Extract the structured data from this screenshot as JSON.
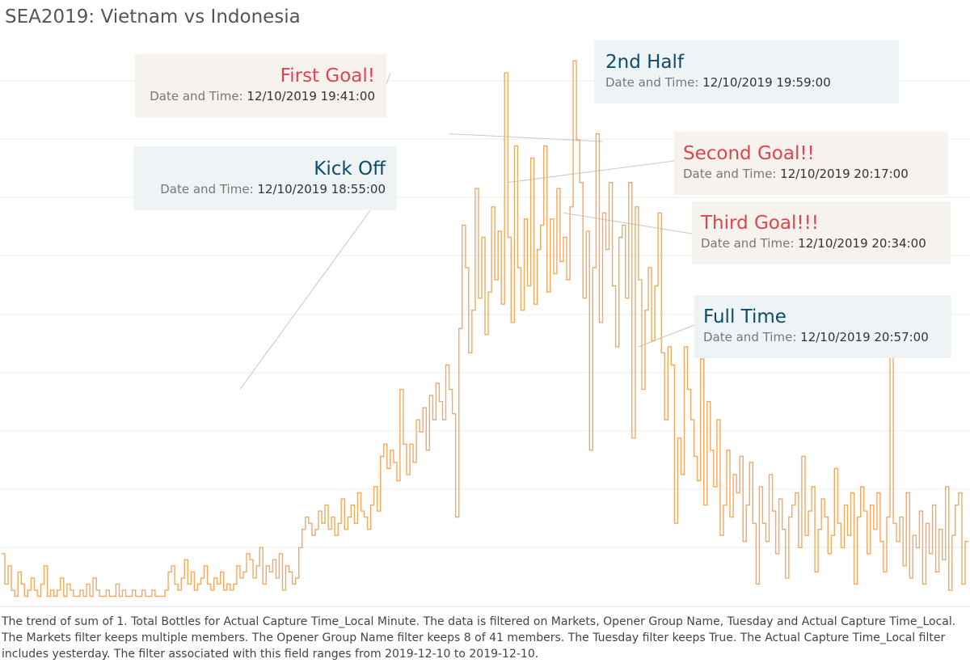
{
  "title": "SEA2019: Vietnam vs Indonesia",
  "colors": {
    "line": "#f5a860",
    "gridline": "#ececec",
    "goal_text": "#e0444d",
    "phase_text": "#0e4a6b",
    "goal_box": "#f6f2ee",
    "phase_box": "#eef4f6"
  },
  "annotations": [
    {
      "id": "first-goal",
      "title": "First Goal!",
      "label": "Date and Time:",
      "value": "12/10/2019 19:41:00",
      "kind": "goal"
    },
    {
      "id": "second-half",
      "title": "2nd Half",
      "label": "Date and Time:",
      "value": "12/10/2019 19:59:00",
      "kind": "phase"
    },
    {
      "id": "kick-off",
      "title": "Kick Off",
      "label": "Date and Time:",
      "value": "12/10/2019 18:55:00",
      "kind": "phase"
    },
    {
      "id": "second-goal",
      "title": "Second Goal!!",
      "label": "Date and Time:",
      "value": "12/10/2019 20:17:00",
      "kind": "goal"
    },
    {
      "id": "third-goal",
      "title": "Third Goal!!!",
      "label": "Date and Time:",
      "value": "12/10/2019 20:34:00",
      "kind": "goal"
    },
    {
      "id": "full-time",
      "title": "Full Time",
      "label": "Date and Time:",
      "value": "12/10/2019 20:57:00",
      "kind": "phase"
    }
  ],
  "caption": "The trend of sum of 1. Total Bottles for Actual Capture Time_Local Minute. The data is filtered on Markets, Opener Group Name, Tuesday and Actual Capture Time_Local. The Markets filter keeps multiple members. The Opener Group Name filter keeps 8 of 41 members. The Tuesday filter keeps True. The Actual Capture Time_Local filter includes yesterday. The filter associated with this field ranges from 2019-12-10 to 2019-12-10.",
  "chart_data": {
    "type": "line",
    "step": true,
    "x_unit": "minute",
    "y_measure": "Total Bottles",
    "x_start": "12/10/2019 17:42:00",
    "x_end": "12/10/2019 21:53:00",
    "grid": true,
    "legend": "none",
    "y_axis_shown": false,
    "ylim": [
      0,
      9.5
    ],
    "events": [
      {
        "x": "12/10/2019 18:55:00",
        "y": 3.5,
        "label": "Kick Off"
      },
      {
        "x": "12/10/2019 19:41:00",
        "y": 8.7,
        "label": "First Goal!"
      },
      {
        "x": "12/10/2019 19:59:00",
        "y": 7.7,
        "label": "2nd Half"
      },
      {
        "x": "12/10/2019 20:17:00",
        "y": 6.9,
        "label": "Second Goal!!"
      },
      {
        "x": "12/10/2019 20:34:00",
        "y": 6.4,
        "label": "Third Goal!!!"
      },
      {
        "x": "12/10/2019 20:57:00",
        "y": 4.2,
        "label": "Full Time"
      }
    ],
    "values": [
      0.8,
      0.3,
      0.6,
      0.2,
      0.1,
      0.5,
      0.3,
      0.1,
      0.2,
      0.4,
      0.2,
      0.1,
      0.3,
      0.6,
      0.1,
      0.2,
      0.1,
      0.2,
      0.4,
      0.1,
      0.3,
      0.2,
      0.1,
      0.1,
      0.2,
      0.1,
      0.3,
      0.1,
      0.4,
      0.2,
      0.1,
      0.1,
      0.2,
      0.1,
      0.1,
      0.3,
      0.1,
      0.2,
      0.1,
      0.1,
      0.2,
      0.1,
      0.1,
      0.2,
      0.1,
      0.1,
      0.2,
      0.1,
      0.1,
      0.1,
      0.2,
      0.5,
      0.6,
      0.3,
      0.2,
      0.4,
      0.7,
      0.3,
      0.5,
      0.2,
      0.3,
      0.4,
      0.6,
      0.3,
      0.2,
      0.4,
      0.3,
      0.5,
      0.2,
      0.3,
      0.2,
      0.3,
      0.6,
      0.4,
      0.5,
      0.8,
      0.7,
      0.4,
      0.6,
      0.9,
      0.3,
      0.6,
      0.5,
      0.7,
      0.4,
      0.8,
      0.2,
      0.6,
      0.5,
      0.3,
      0.4,
      0.9,
      1.2,
      1.4,
      1.3,
      1.1,
      1.2,
      1.5,
      1.3,
      1.6,
      1.2,
      1.4,
      1.1,
      1.3,
      1.7,
      1.2,
      1.4,
      1.6,
      1.3,
      1.8,
      1.5,
      1.4,
      1.2,
      1.6,
      1.9,
      1.5,
      2.4,
      2.6,
      2.2,
      2.5,
      2.3,
      2.0,
      3.5,
      2.6,
      2.1,
      2.6,
      2.3,
      3.0,
      2.8,
      3.2,
      2.5,
      3.4,
      3.0,
      3.6,
      3.3,
      3.0,
      3.9,
      3.5,
      3.1,
      1.4,
      4.5,
      6.2,
      5.5,
      4.1,
      4.8,
      6.8,
      5.0,
      6.0,
      4.4,
      5.1,
      6.5,
      5.3,
      6.1,
      4.9,
      8.7,
      6.0,
      4.6,
      7.5,
      5.5,
      4.8,
      6.3,
      5.2,
      7.3,
      4.9,
      5.8,
      6.2,
      7.5,
      5.1,
      6.3,
      5.4,
      6.8,
      5.6,
      6.0,
      5.3,
      6.5,
      8.9,
      7.6,
      6.9,
      5.0,
      6.1,
      2.5,
      5.5,
      7.7,
      4.6,
      6.4,
      5.8,
      6.9,
      5.2,
      4.2,
      6.0,
      6.2,
      5.0,
      6.9,
      2.7,
      6.5,
      5.3,
      3.5,
      4.8,
      5.5,
      4.3,
      5.2,
      6.4,
      4.1,
      3.0,
      4.2,
      3.9,
      1.3,
      2.7,
      2.1,
      4.2,
      3.5,
      3.0,
      2.4,
      2.0,
      4.0,
      1.6,
      3.3,
      2.5,
      1.9,
      3.0,
      1.1,
      1.6,
      2.5,
      1.4,
      2.1,
      1.8,
      2.4,
      1.0,
      1.6,
      2.3,
      1.3,
      0.3,
      1.9,
      1.3,
      1.0,
      2.1,
      1.5,
      0.8,
      1.7,
      1.2,
      0.4,
      1.4,
      1.6,
      1.8,
      0.9,
      2.4,
      1.1,
      1.5,
      1.9,
      0.5,
      1.2,
      1.7,
      1.4,
      0.8,
      1.1,
      2.2,
      1.3,
      0.9,
      1.6,
      1.1,
      1.8,
      0.3,
      1.4,
      1.9,
      1.5,
      0.8,
      1.6,
      1.2,
      1.8,
      1.0,
      0.5,
      1.4,
      4.2,
      1.3,
      1.0,
      1.4,
      0.6,
      1.8,
      0.4,
      1.1,
      0.9,
      1.5,
      0.3,
      1.3,
      0.8,
      1.6,
      0.5,
      1.2,
      0.7,
      1.9,
      0.2,
      1.1,
      1.6,
      1.8,
      0.3,
      1.0
    ]
  }
}
